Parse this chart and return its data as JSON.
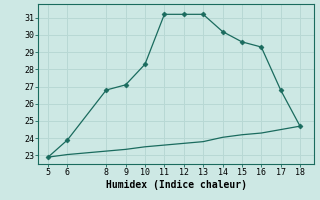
{
  "xlabel": "Humidex (Indice chaleur)",
  "bg_color": "#cde8e4",
  "line_color": "#1a6b5e",
  "marker_color": "#1a6b5e",
  "grid_color": "#b8d8d4",
  "series1_x": [
    5,
    6,
    8,
    9,
    10,
    11,
    12,
    13,
    14,
    15,
    16,
    17,
    18
  ],
  "series1_y": [
    22.9,
    23.9,
    26.8,
    27.1,
    28.3,
    31.2,
    31.2,
    31.2,
    30.2,
    29.6,
    29.3,
    26.8,
    24.7
  ],
  "series2_x": [
    5,
    6,
    8,
    9,
    10,
    11,
    12,
    13,
    14,
    15,
    16,
    17,
    18
  ],
  "series2_y": [
    22.9,
    23.05,
    23.25,
    23.35,
    23.5,
    23.6,
    23.7,
    23.8,
    24.05,
    24.2,
    24.3,
    24.5,
    24.7
  ],
  "xlim": [
    4.5,
    18.7
  ],
  "ylim": [
    22.5,
    31.8
  ],
  "xticks": [
    5,
    6,
    8,
    9,
    10,
    11,
    12,
    13,
    14,
    15,
    16,
    17,
    18
  ],
  "yticks": [
    23,
    24,
    25,
    26,
    27,
    28,
    29,
    30,
    31
  ],
  "tick_fontsize": 6,
  "xlabel_fontsize": 7
}
